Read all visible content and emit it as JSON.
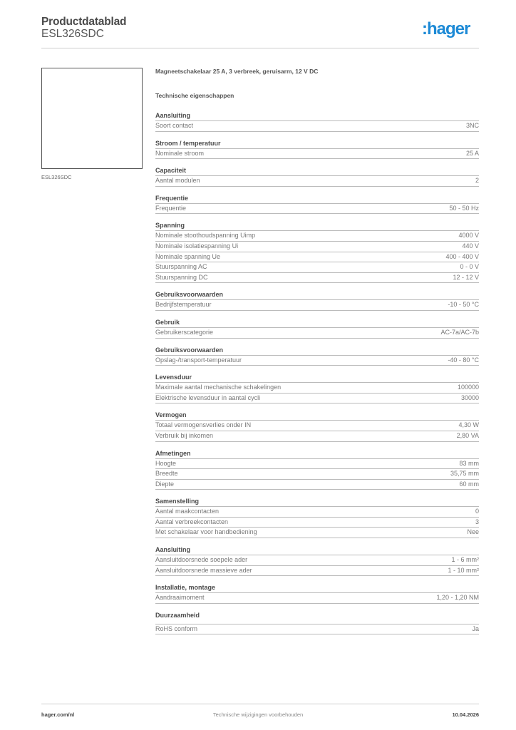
{
  "header": {
    "title": "Productdatablad",
    "product_code": "ESL326SDC",
    "logo": ":hager",
    "brand_color": "#1d8ad6"
  },
  "image_caption": "ESL326SDC",
  "description": "Magneetschakelaar 25 A, 3 verbreek, geruisarm, 12 V DC",
  "tech_heading": "Technische eigenschappen",
  "sections": [
    {
      "title": "Aansluiting",
      "rows": [
        {
          "label": "Soort contact",
          "value": "3NC"
        }
      ]
    },
    {
      "title": "Stroom / temperatuur",
      "rows": [
        {
          "label": "Nominale stroom",
          "value": "25 A"
        }
      ]
    },
    {
      "title": "Capaciteit",
      "rows": [
        {
          "label": "Aantal modulen",
          "value": "2"
        }
      ]
    },
    {
      "title": "Frequentie",
      "rows": [
        {
          "label": "Frequentie",
          "value": "50 - 50 Hz"
        }
      ]
    },
    {
      "title": "Spanning",
      "rows": [
        {
          "label": "Nominale stoothoudspanning Uimp",
          "value": "4000 V"
        },
        {
          "label": "Nominale isolatiespanning Ui",
          "value": "440 V"
        },
        {
          "label": "Nominale spanning Ue",
          "value": "400 - 400 V"
        },
        {
          "label": "Stuurspanning AC",
          "value": "0 - 0 V"
        },
        {
          "label": "Stuurspanning DC",
          "value": "12 - 12 V"
        }
      ]
    },
    {
      "title": "Gebruiksvoorwaarden",
      "rows": [
        {
          "label": "Bedrijfstemperatuur",
          "value": "-10 - 50 °C"
        }
      ]
    },
    {
      "title": "Gebruik",
      "rows": [
        {
          "label": "Gebruikerscategorie",
          "value": "AC-7a/AC-7b"
        }
      ]
    },
    {
      "title": "Gebruiksvoorwaarden",
      "rows": [
        {
          "label": "Opslag-/transport-temperatuur",
          "value": "-40 - 80 °C"
        }
      ]
    },
    {
      "title": "Levensduur",
      "rows": [
        {
          "label": "Maximale aantal mechanische schakelingen",
          "value": "100000"
        },
        {
          "label": "Elektrische levensduur in aantal cycli",
          "value": "30000"
        }
      ]
    },
    {
      "title": "Vermogen",
      "rows": [
        {
          "label": "Totaal vermogensverlies onder IN",
          "value": "4,30 W"
        },
        {
          "label": "Verbruik bij inkomen",
          "value": "2,80 VA"
        }
      ]
    },
    {
      "title": "Afmetingen",
      "rows": [
        {
          "label": "Hoogte",
          "value": "83 mm"
        },
        {
          "label": "Breedte",
          "value": "35,75 mm"
        },
        {
          "label": "Diepte",
          "value": "60 mm"
        }
      ]
    },
    {
      "title": "Samenstelling",
      "rows": [
        {
          "label": "Aantal maakcontacten",
          "value": "0"
        },
        {
          "label": "Aantal verbreekcontacten",
          "value": "3"
        },
        {
          "label": "Met schakelaar voor handbediening",
          "value": "Nee"
        }
      ]
    },
    {
      "title": "Aansluiting",
      "rows": [
        {
          "label": "Aansluitdoorsnede soepele ader",
          "value": "1 - 6 mm²"
        },
        {
          "label": "Aansluitdoorsnede massieve ader",
          "value": "1 - 10 mm²"
        }
      ]
    },
    {
      "title": "Installatie, montage",
      "rows": [
        {
          "label": "Aandraaimoment",
          "value": "1,20 - 1,20 NM"
        }
      ]
    },
    {
      "title": "Duurzaamheid",
      "rows": [
        {
          "label": "RoHS conform",
          "value": "Ja"
        }
      ]
    }
  ],
  "footer": {
    "website": "hager.com/nl",
    "notice": "Technische wijzigingen voorbehouden",
    "date": "10.04.2026"
  }
}
